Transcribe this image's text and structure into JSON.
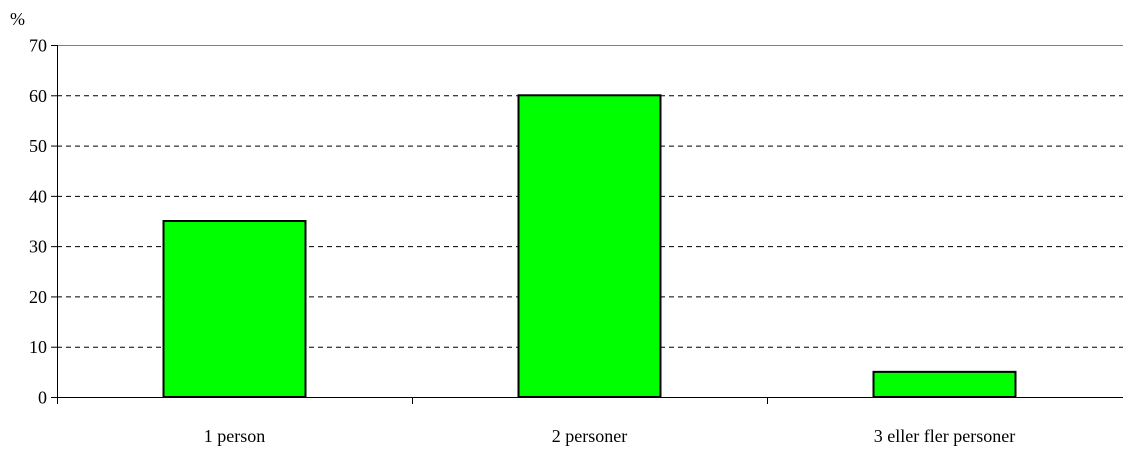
{
  "chart_data": {
    "type": "bar",
    "ylabel": "%",
    "xlabel": "",
    "categories": [
      "1 person",
      "2 personer",
      "3 eller fler personer"
    ],
    "values": [
      35,
      60,
      5
    ],
    "ylim": [
      0,
      70
    ],
    "yticks": [
      0,
      10,
      20,
      30,
      40,
      50,
      60,
      70
    ],
    "grid": "horizontal-dashed",
    "legend": "none",
    "colors": {
      "bar_fill": "#00ff00",
      "bar_stroke": "#000000",
      "grid": "#000000",
      "axis": "#000000",
      "background": "#ffffff"
    }
  }
}
